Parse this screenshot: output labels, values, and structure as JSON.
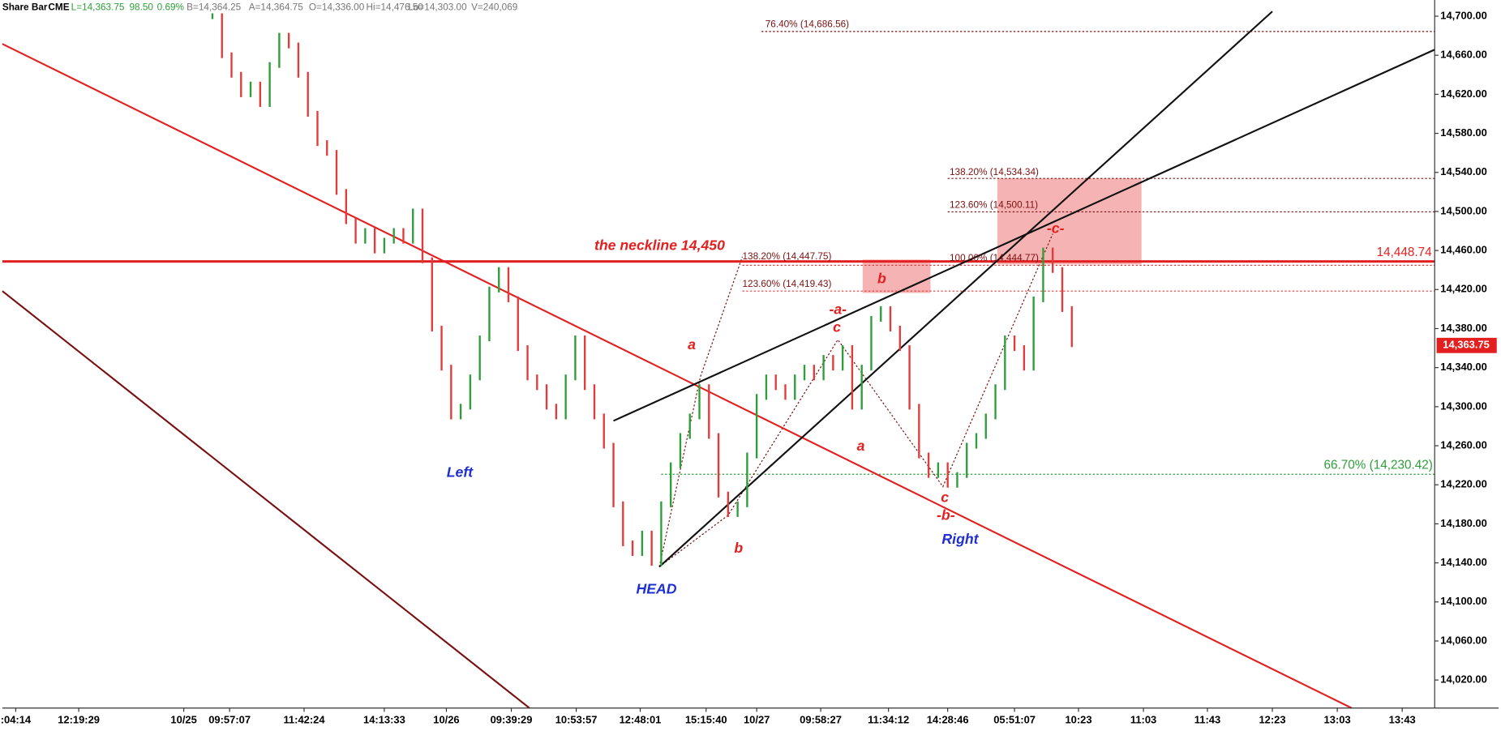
{
  "chart_data": {
    "type": "bar-ticks",
    "header": [
      "Share Bar",
      "CME",
      "L=14,363.75",
      "98.50",
      "0.69%",
      "B=14,364.25",
      "A=14,364.75",
      "O=14,336.00",
      "Hi=14,476.50",
      "Lo=14,303.00",
      "V=240,069"
    ],
    "annotations": [
      "the neckline 14,450",
      "Left",
      "HEAD",
      "Right",
      "a",
      "b",
      "-a-",
      "c",
      "a",
      "b",
      "c",
      "-b-",
      "-c-",
      "76.40% (14,686.56)",
      "138.20% (14,534.34)",
      "123.60% (14,500.11)",
      "100.00% (14,444.77)",
      "138.20% (14,447.75)",
      "123.60% (14,419.43)",
      "66.70% (14,230.42)",
      "14,448.74",
      "14,363.75"
    ],
    "up_color": "#2e9e3a",
    "down_color": "#e23b3b",
    "x": [
      22,
      23,
      24,
      25,
      26,
      27,
      28,
      29,
      30,
      31,
      32,
      33,
      34,
      35,
      36,
      37,
      38,
      39,
      40,
      41,
      42,
      43,
      44,
      45,
      46,
      47,
      48,
      49,
      50,
      51,
      52,
      53,
      54,
      55,
      56,
      57,
      58,
      59,
      60,
      61,
      62,
      63,
      64,
      65,
      66,
      67,
      68,
      69,
      70,
      71,
      72,
      73,
      74,
      75,
      76,
      77,
      78,
      79,
      80,
      81,
      82,
      83,
      84,
      85,
      86,
      87,
      88,
      89,
      90,
      91,
      92,
      93,
      94,
      95,
      96,
      97,
      98,
      99,
      100,
      101,
      102,
      103,
      104,
      105,
      106,
      107,
      108,
      109,
      110,
      111,
      112
    ],
    "values": [
      14700,
      14660,
      14640,
      14620,
      14630,
      14610,
      14650,
      14680,
      14670,
      14640,
      14600,
      14570,
      14560,
      14520,
      14490,
      14470,
      14480,
      14460,
      14470,
      14480,
      14470,
      14500,
      14450,
      14380,
      14340,
      14290,
      14300,
      14330,
      14370,
      14420,
      14440,
      14410,
      14360,
      14330,
      14320,
      14300,
      14290,
      14330,
      14370,
      14320,
      14290,
      14260,
      14200,
      14160,
      14150,
      14170,
      14140,
      14200,
      14240,
      14270,
      14290,
      14320,
      14270,
      14210,
      14190,
      14200,
      14250,
      14310,
      14330,
      14320,
      14310,
      14330,
      14340,
      14330,
      14350,
      14340,
      14360,
      14300,
      14340,
      14390,
      14400,
      14380,
      14360,
      14300,
      14250,
      14230,
      14240,
      14220,
      14230,
      14260,
      14270,
      14290,
      14320,
      14370,
      14360,
      14340,
      14410,
      14460,
      14440,
      14400,
      14364
    ],
    "xlim": [
      0,
      150
    ],
    "xticks": [
      {
        "value": 1.4,
        "label": ":04:14"
      },
      {
        "value": 8,
        "label": "12:19:29"
      },
      {
        "value": 19,
        "label": "10/25"
      },
      {
        "value": 23.8,
        "label": "09:57:07"
      },
      {
        "value": 31.6,
        "label": "11:42:24"
      },
      {
        "value": 40,
        "label": "14:13:33"
      },
      {
        "value": 46.5,
        "label": "10/26"
      },
      {
        "value": 53.3,
        "label": "09:39:29"
      },
      {
        "value": 60.1,
        "label": "10:53:57"
      },
      {
        "value": 66.8,
        "label": "12:48:01"
      },
      {
        "value": 73.7,
        "label": "15:15:40"
      },
      {
        "value": 79,
        "label": "10/27"
      },
      {
        "value": 85.7,
        "label": "09:58:27"
      },
      {
        "value": 92.8,
        "label": "11:34:12"
      },
      {
        "value": 99,
        "label": "14:28:46"
      },
      {
        "value": 106,
        "label": "05:51:07"
      },
      {
        "value": 112.7,
        "label": "10:23"
      },
      {
        "value": 119.5,
        "label": "11:03"
      },
      {
        "value": 126.2,
        "label": "11:43"
      },
      {
        "value": 133,
        "label": "12:23"
      },
      {
        "value": 139.8,
        "label": "13:03"
      },
      {
        "value": 146.6,
        "label": "13:43"
      }
    ],
    "ylim": [
      13991.3,
      14716.6
    ],
    "yticks": [
      {
        "value": 14020,
        "label": "14,020.00"
      },
      {
        "value": 14060,
        "label": "14,060.00"
      },
      {
        "value": 14100,
        "label": "14,100.00"
      },
      {
        "value": 14140,
        "label": "14,140.00"
      },
      {
        "value": 14180,
        "label": "14,180.00"
      },
      {
        "value": 14220,
        "label": "14,220.00"
      },
      {
        "value": 14260,
        "label": "14,260.00"
      },
      {
        "value": 14300,
        "label": "14,300.00"
      },
      {
        "value": 14340,
        "label": "14,340.00"
      },
      {
        "value": 14380,
        "label": "14,380.00"
      },
      {
        "value": 14420,
        "label": "14,420.00"
      },
      {
        "value": 14460,
        "label": "14,460.00"
      },
      {
        "value": 14500,
        "label": "14,500.00"
      },
      {
        "value": 14540,
        "label": "14,540.00"
      },
      {
        "value": 14580,
        "label": "14,580.00"
      },
      {
        "value": 14620,
        "label": "14,620.00"
      },
      {
        "value": 14660,
        "label": "14,660.00"
      },
      {
        "value": 14700,
        "label": "14,700.00"
      }
    ]
  }
}
